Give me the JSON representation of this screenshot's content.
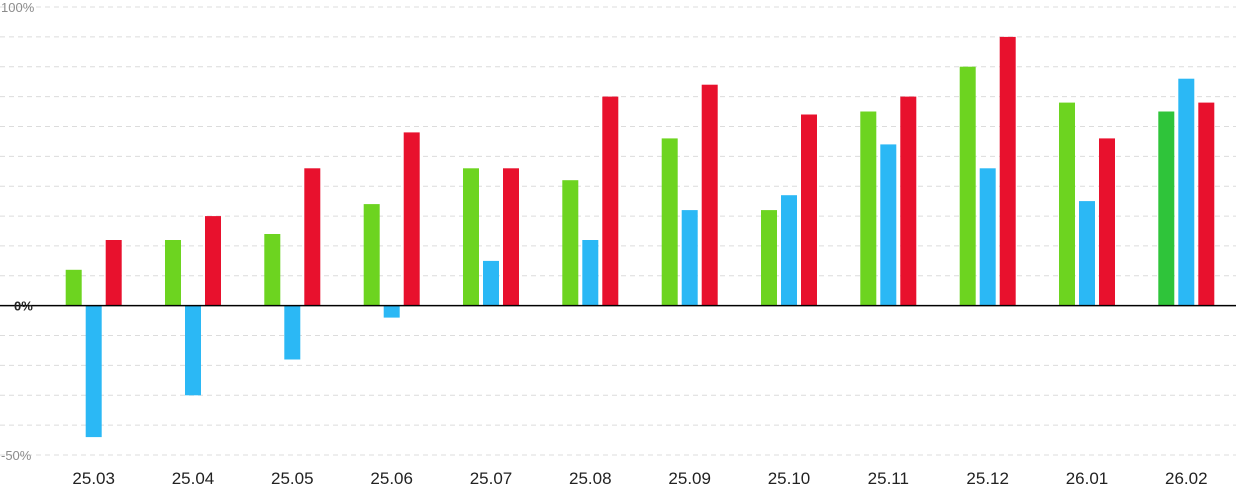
{
  "chart_data": {
    "type": "bar",
    "title": "",
    "xlabel": "",
    "ylabel": "",
    "ylim": [
      -50,
      100
    ],
    "yticks": [
      {
        "value": 100,
        "label": "100%"
      },
      {
        "value": 0,
        "label": "0%"
      },
      {
        "value": -50,
        "label": "-50%"
      }
    ],
    "grid": true,
    "categories": [
      "25.03",
      "25.04",
      "25.05",
      "25.06",
      "25.07",
      "25.08",
      "25.09",
      "25.10",
      "25.11",
      "25.12",
      "26.01",
      "26.02"
    ],
    "series": [
      {
        "color": "#6dd420",
        "values": [
          12,
          22,
          24,
          34,
          46,
          42,
          56,
          32,
          65,
          80,
          68,
          65
        ],
        "highlight": {
          "index": 11,
          "color": "#2fc43a"
        }
      },
      {
        "color": "#2bb8f5",
        "values": [
          -44,
          -30,
          -18,
          -4,
          15,
          22,
          32,
          37,
          54,
          46,
          35,
          76
        ]
      },
      {
        "color": "#e8112d",
        "values": [
          22,
          30,
          46,
          58,
          46,
          70,
          74,
          64,
          70,
          90,
          56,
          68
        ]
      }
    ]
  }
}
